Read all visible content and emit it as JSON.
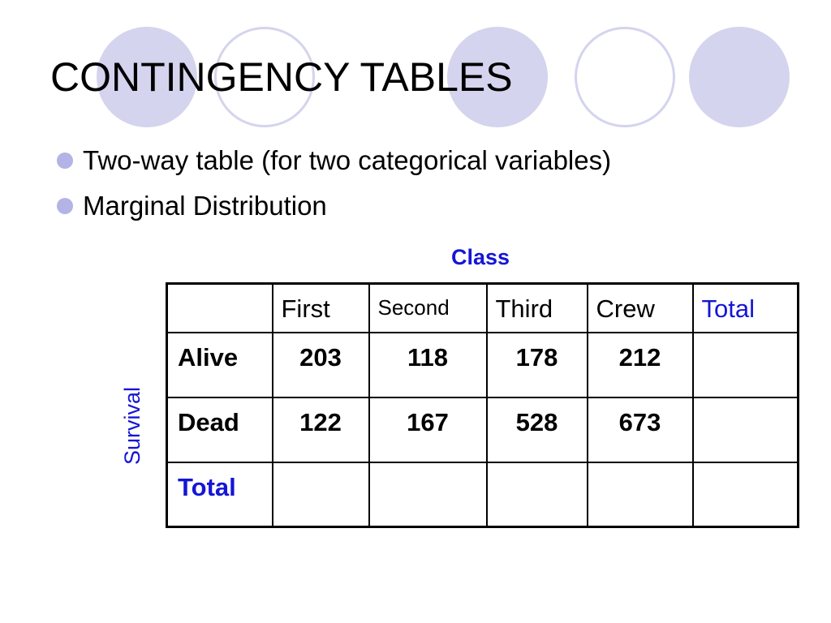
{
  "slide": {
    "title": "CONTINGENCY TABLES",
    "bullets": [
      "Two-way table (for two categorical variables)",
      "Marginal Distribution"
    ]
  },
  "table": {
    "column_variable": "Class",
    "row_variable": "Survival",
    "header": [
      "",
      "First",
      "Second",
      "Third",
      "Crew",
      "Total"
    ],
    "rows": [
      {
        "label": "Alive",
        "cells": [
          "203",
          "118",
          "178",
          "212",
          ""
        ]
      },
      {
        "label": "Dead",
        "cells": [
          "122",
          "167",
          "528",
          "673",
          ""
        ]
      },
      {
        "label": "Total",
        "cells": [
          "",
          "",
          "",
          "",
          ""
        ]
      }
    ]
  },
  "colors": {
    "accent_text": "#1515d6",
    "decor_circles": "#d4d4ee",
    "bullet": "#b3b3e6"
  }
}
